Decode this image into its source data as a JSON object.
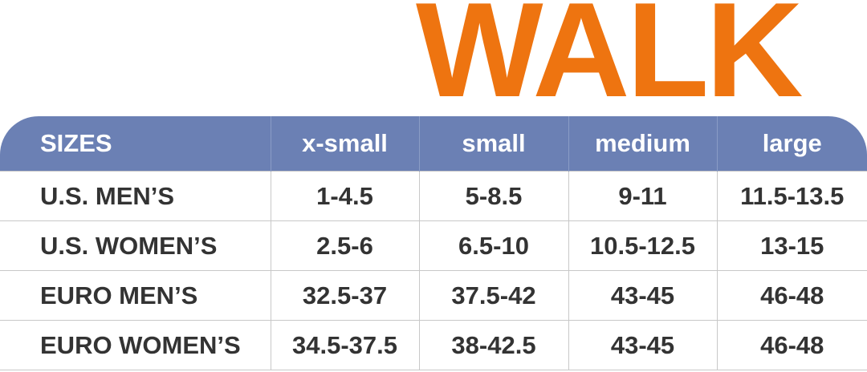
{
  "header": {
    "title": "WALK"
  },
  "table": {
    "columns": [
      "SIZES",
      "x-small",
      "small",
      "medium",
      "large"
    ],
    "rows": [
      [
        "U.S. MEN’S",
        "1-4.5",
        "5-8.5",
        "9-11",
        "11.5-13.5"
      ],
      [
        "U.S. WOMEN’S",
        "2.5-6",
        "6.5-10",
        "10.5-12.5",
        "13-15"
      ],
      [
        "EURO MEN’S",
        "32.5-37",
        "37.5-42",
        "43-45",
        "46-48"
      ],
      [
        "EURO WOMEN’S",
        "34.5-37.5",
        "38-42.5",
        "43-45",
        "46-48"
      ]
    ]
  }
}
